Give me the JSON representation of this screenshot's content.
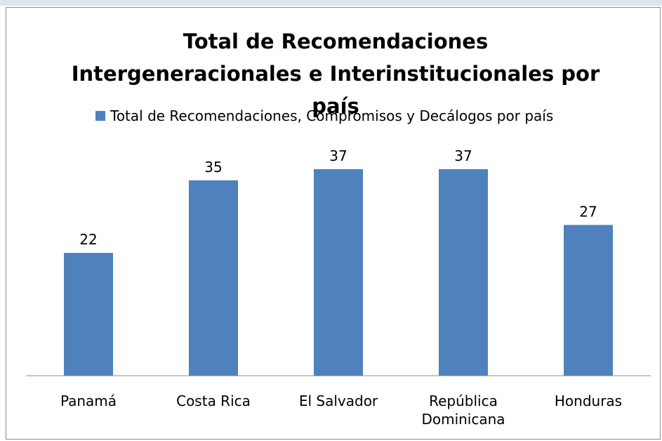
{
  "chart_data": {
    "type": "bar",
    "title": "Total de Recomendaciones Intergeneracionales e Interinstitucionales por país",
    "categories": [
      "Panamá",
      "Costa Rica",
      "El Salvador",
      "República Dominicana",
      "Honduras"
    ],
    "series": [
      {
        "name": "Total de Recomendaciones, Compromisos y Decálogos por país",
        "color": "#4f81bd",
        "values": [
          22,
          35,
          37,
          37,
          27
        ]
      }
    ],
    "legend": "top"
  }
}
